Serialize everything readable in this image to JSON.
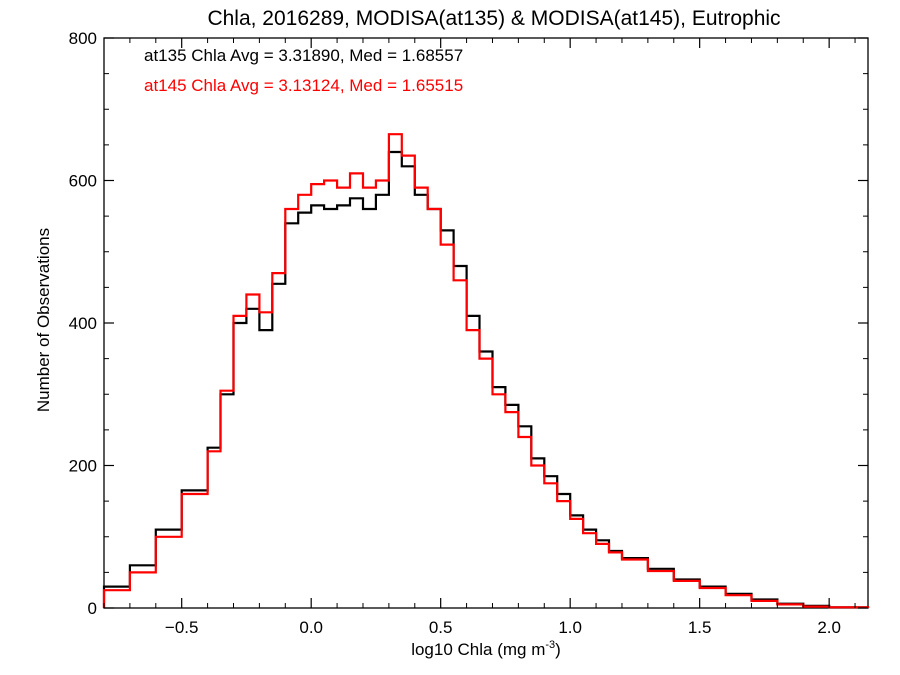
{
  "chart_data": {
    "type": "line",
    "step": true,
    "title": "Chla, 2016289, MODISA(at135) & MODISA(at145), Eutrophic",
    "xlabel": "log10 Chla (mg m",
    "xlabel_sup": "-3",
    "xlabel_close": ")",
    "ylabel": "Number of Observations",
    "xlim": [
      -0.8,
      2.15
    ],
    "ylim": [
      0,
      800
    ],
    "xticks": [
      -0.5,
      0.0,
      0.5,
      1.0,
      1.5,
      2.0
    ],
    "xtick_labels": [
      "−0.5",
      "0.0",
      "0.5",
      "1.0",
      "1.5",
      "2.0"
    ],
    "yticks": [
      0,
      200,
      400,
      600,
      800
    ],
    "ytick_labels": [
      "0",
      "200",
      "400",
      "600",
      "800"
    ],
    "grid": false,
    "annotations": [
      {
        "text": "at135 Chla Avg = 3.31890, Med = 1.68557",
        "color": "#000000"
      },
      {
        "text": "at145 Chla Avg = 3.13124, Med = 1.65515",
        "color": "#ff0000"
      }
    ],
    "series": [
      {
        "color": "#000000",
        "x": [
          -0.8,
          -0.7,
          -0.6,
          -0.5,
          -0.4,
          -0.35,
          -0.3,
          -0.25,
          -0.2,
          -0.15,
          -0.1,
          -0.05,
          0.0,
          0.05,
          0.1,
          0.15,
          0.2,
          0.25,
          0.3,
          0.35,
          0.4,
          0.45,
          0.5,
          0.55,
          0.6,
          0.65,
          0.7,
          0.75,
          0.8,
          0.85,
          0.9,
          0.95,
          1.0,
          1.05,
          1.1,
          1.15,
          1.2,
          1.3,
          1.4,
          1.5,
          1.6,
          1.7,
          1.8,
          1.9,
          2.0,
          2.15
        ],
        "y": [
          30,
          60,
          110,
          165,
          225,
          300,
          400,
          420,
          390,
          455,
          540,
          555,
          565,
          560,
          565,
          575,
          560,
          580,
          640,
          620,
          580,
          560,
          530,
          480,
          410,
          360,
          310,
          285,
          255,
          210,
          185,
          160,
          130,
          110,
          95,
          80,
          70,
          55,
          40,
          30,
          20,
          12,
          6,
          3,
          1,
          0
        ]
      },
      {
        "color": "#ff0000",
        "x": [
          -0.8,
          -0.7,
          -0.6,
          -0.5,
          -0.4,
          -0.35,
          -0.3,
          -0.25,
          -0.2,
          -0.15,
          -0.1,
          -0.05,
          0.0,
          0.05,
          0.1,
          0.15,
          0.2,
          0.25,
          0.3,
          0.35,
          0.4,
          0.45,
          0.5,
          0.55,
          0.6,
          0.65,
          0.7,
          0.75,
          0.8,
          0.85,
          0.9,
          0.95,
          1.0,
          1.05,
          1.1,
          1.15,
          1.2,
          1.3,
          1.4,
          1.5,
          1.6,
          1.7,
          1.8,
          1.9,
          2.0,
          2.15
        ],
        "y": [
          25,
          50,
          100,
          160,
          220,
          305,
          410,
          440,
          415,
          470,
          560,
          580,
          595,
          600,
          590,
          610,
          590,
          600,
          665,
          635,
          590,
          560,
          510,
          460,
          390,
          350,
          300,
          275,
          240,
          200,
          175,
          150,
          125,
          105,
          90,
          78,
          68,
          52,
          38,
          28,
          18,
          10,
          5,
          2,
          1,
          0
        ]
      }
    ]
  }
}
